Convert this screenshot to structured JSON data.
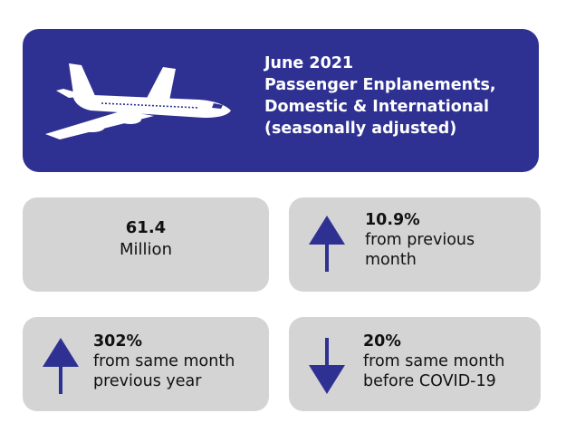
{
  "colors": {
    "header_background": "#2e3192",
    "card_background": "#d4d4d4",
    "arrow": "#2e3192",
    "text": "#111111"
  },
  "header": {
    "icon": "airplane-icon",
    "lines": [
      "June 2021",
      "Passenger Enplanements,",
      "Domestic & International",
      "(seasonally adjusted)"
    ]
  },
  "total": {
    "value": "61.4",
    "unit": "Million"
  },
  "stats": [
    {
      "direction": "up",
      "icon": "up-arrow-icon",
      "value": "10.9%",
      "lines": [
        "from previous",
        "month"
      ]
    },
    {
      "direction": "up",
      "icon": "up-arrow-icon",
      "value": "302%",
      "lines": [
        "from same month",
        "previous year"
      ]
    },
    {
      "direction": "down",
      "icon": "down-arrow-icon",
      "value": "20%",
      "lines": [
        "from same month",
        "before COVID-19"
      ]
    }
  ]
}
